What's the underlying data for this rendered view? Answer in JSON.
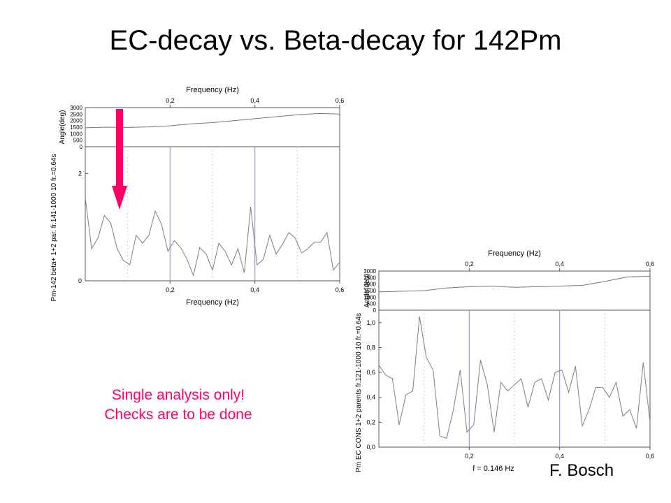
{
  "slide": {
    "title": "EC-decay vs. Beta-decay for 142Pm",
    "note_line1": "Single analysis only!",
    "note_line2": "Checks are to be done",
    "credit": "F. Bosch",
    "arrow_color": "#ff0066"
  },
  "chart_data": [
    {
      "type": "line",
      "top_axis_label": "Frequency (Hz)",
      "xlabel": "Frequency (Hz)",
      "ylabel": "Pm-142 beta+ 1+2 par. fr.141-1000 10 fr.=0.64s",
      "upper_ylabel": "Angle(deg)",
      "xlim": [
        0,
        0.6
      ],
      "x_ticks": [
        "0,2",
        "0,4",
        "0,6"
      ],
      "ylim": [
        0,
        2.5
      ],
      "y_ticks": [
        "0",
        "2"
      ],
      "upper_ylim": [
        0,
        3000
      ],
      "upper_y_ticks": [
        "3000",
        "2500",
        "2000",
        "1500",
        "1000",
        "500",
        "0"
      ],
      "markers_x": [
        0.2,
        0.4
      ],
      "upper_series": {
        "x": [
          0,
          0.05,
          0.1,
          0.15,
          0.2,
          0.25,
          0.3,
          0.35,
          0.4,
          0.45,
          0.5,
          0.55,
          0.6
        ],
        "values": [
          1450,
          1500,
          1480,
          1520,
          1600,
          1750,
          1850,
          2000,
          2150,
          2300,
          2450,
          2550,
          2500
        ]
      },
      "series": [
        {
          "x": [
            0.0,
            0.015,
            0.03,
            0.045,
            0.06,
            0.075,
            0.09,
            0.105,
            0.12,
            0.135,
            0.15,
            0.165,
            0.18,
            0.195,
            0.21,
            0.225,
            0.24,
            0.255,
            0.27,
            0.285,
            0.3,
            0.315,
            0.33,
            0.345,
            0.36,
            0.375,
            0.39,
            0.405,
            0.42,
            0.435,
            0.45,
            0.465,
            0.48,
            0.495,
            0.51,
            0.525,
            0.54,
            0.555,
            0.57,
            0.585,
            0.6
          ],
          "values": [
            1.55,
            0.6,
            0.8,
            1.22,
            1.08,
            0.6,
            0.38,
            0.3,
            0.85,
            0.7,
            0.85,
            1.3,
            1.05,
            0.55,
            0.75,
            0.62,
            0.4,
            0.1,
            0.62,
            0.5,
            0.2,
            0.7,
            0.55,
            0.3,
            0.6,
            0.15,
            1.38,
            0.3,
            0.4,
            0.85,
            0.5,
            0.68,
            0.9,
            0.8,
            0.52,
            0.6,
            0.72,
            0.72,
            0.9,
            0.2,
            0.35
          ]
        }
      ]
    },
    {
      "type": "line",
      "top_axis_label": "Frequency (Hz)",
      "xlabel": "f = 0.146 Hz",
      "ylabel": "Pm EC CONS 1+2 parents fr.121-1000 10 fr.=0.64s",
      "upper_ylabel": "Angle(deg)",
      "xlim": [
        0,
        0.6
      ],
      "x_ticks": [
        "0,2",
        "0,4",
        "0,6"
      ],
      "ylim": [
        0,
        1.1
      ],
      "y_ticks": [
        "0,0",
        "0,2",
        "0,4",
        "0,6",
        "0,8",
        "1,0"
      ],
      "upper_ylim": [
        0,
        3000
      ],
      "upper_y_ticks": [
        "3000",
        "2500",
        "2000",
        "1500",
        "1000",
        "500",
        "0"
      ],
      "markers_x": [
        0.2,
        0.4
      ],
      "upper_series": {
        "x": [
          0,
          0.05,
          0.1,
          0.15,
          0.2,
          0.25,
          0.3,
          0.35,
          0.4,
          0.45,
          0.5,
          0.55,
          0.6
        ],
        "values": [
          1400,
          1450,
          1500,
          1700,
          1800,
          1850,
          1750,
          1800,
          1850,
          1900,
          2200,
          2550,
          2600
        ]
      },
      "series": [
        {
          "x": [
            0.0,
            0.015,
            0.03,
            0.045,
            0.06,
            0.075,
            0.09,
            0.105,
            0.12,
            0.135,
            0.15,
            0.165,
            0.18,
            0.195,
            0.21,
            0.225,
            0.24,
            0.255,
            0.27,
            0.285,
            0.3,
            0.315,
            0.33,
            0.345,
            0.36,
            0.375,
            0.39,
            0.405,
            0.42,
            0.435,
            0.45,
            0.465,
            0.48,
            0.495,
            0.51,
            0.525,
            0.54,
            0.555,
            0.57,
            0.585,
            0.6
          ],
          "values": [
            0.66,
            0.58,
            0.55,
            0.18,
            0.42,
            0.45,
            1.05,
            0.72,
            0.62,
            0.09,
            0.07,
            0.3,
            0.62,
            0.12,
            0.18,
            0.7,
            0.5,
            0.12,
            0.52,
            0.45,
            0.5,
            0.55,
            0.32,
            0.52,
            0.55,
            0.38,
            0.6,
            0.62,
            0.44,
            0.65,
            0.17,
            0.3,
            0.48,
            0.48,
            0.4,
            0.52,
            0.25,
            0.3,
            0.15,
            0.68,
            0.2
          ]
        }
      ]
    }
  ]
}
